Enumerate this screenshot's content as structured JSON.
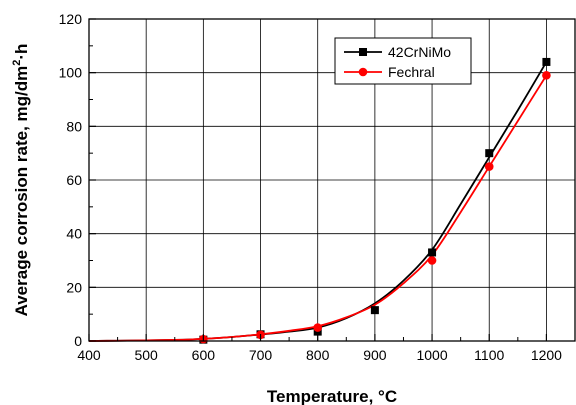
{
  "chart_data": {
    "type": "line",
    "xlabel": "Temperature, °C",
    "ylabel": "Average corrosion rate, mg/dm",
    "ylabel_sup": "2",
    "ylabel_tail": "·h",
    "xlim": [
      400,
      1250
    ],
    "ylim": [
      0,
      120
    ],
    "x_ticks": [
      400,
      500,
      600,
      700,
      800,
      900,
      1000,
      1100,
      1200
    ],
    "y_ticks": [
      0,
      20,
      40,
      60,
      80,
      100,
      120
    ],
    "grid": true,
    "legend_position": "top-right",
    "series": [
      {
        "name": "42CrNiMo",
        "color": "#000000",
        "marker": "square",
        "x": [
          600,
          700,
          800,
          900,
          1000,
          1100,
          1200
        ],
        "y": [
          0.5,
          2.5,
          3.5,
          11.5,
          33,
          70,
          104
        ],
        "curve_x": [
          400,
          450,
          500,
          550,
          600,
          650,
          700,
          750,
          800,
          850,
          900,
          950,
          1000,
          1050,
          1100,
          1150,
          1200
        ],
        "curve_y": [
          0,
          0.1,
          0.2,
          0.4,
          0.8,
          1.5,
          2.4,
          3.5,
          5.0,
          8.5,
          14.0,
          22.5,
          34.0,
          51.0,
          68.5,
          86.0,
          104.0
        ]
      },
      {
        "name": "Fechral",
        "color": "#ff0000",
        "marker": "circle",
        "x": [
          600,
          700,
          800,
          1000,
          1100,
          1200
        ],
        "y": [
          0.7,
          2.3,
          5.0,
          30,
          65,
          99
        ],
        "curve_x": [
          400,
          450,
          500,
          550,
          600,
          650,
          700,
          750,
          800,
          850,
          900,
          950,
          1000,
          1050,
          1100,
          1150,
          1200
        ],
        "curve_y": [
          0,
          0.1,
          0.2,
          0.4,
          0.8,
          1.5,
          2.5,
          3.8,
          5.5,
          8.8,
          13.5,
          21.5,
          32.0,
          48.0,
          65.0,
          82.0,
          99.0
        ]
      }
    ]
  }
}
